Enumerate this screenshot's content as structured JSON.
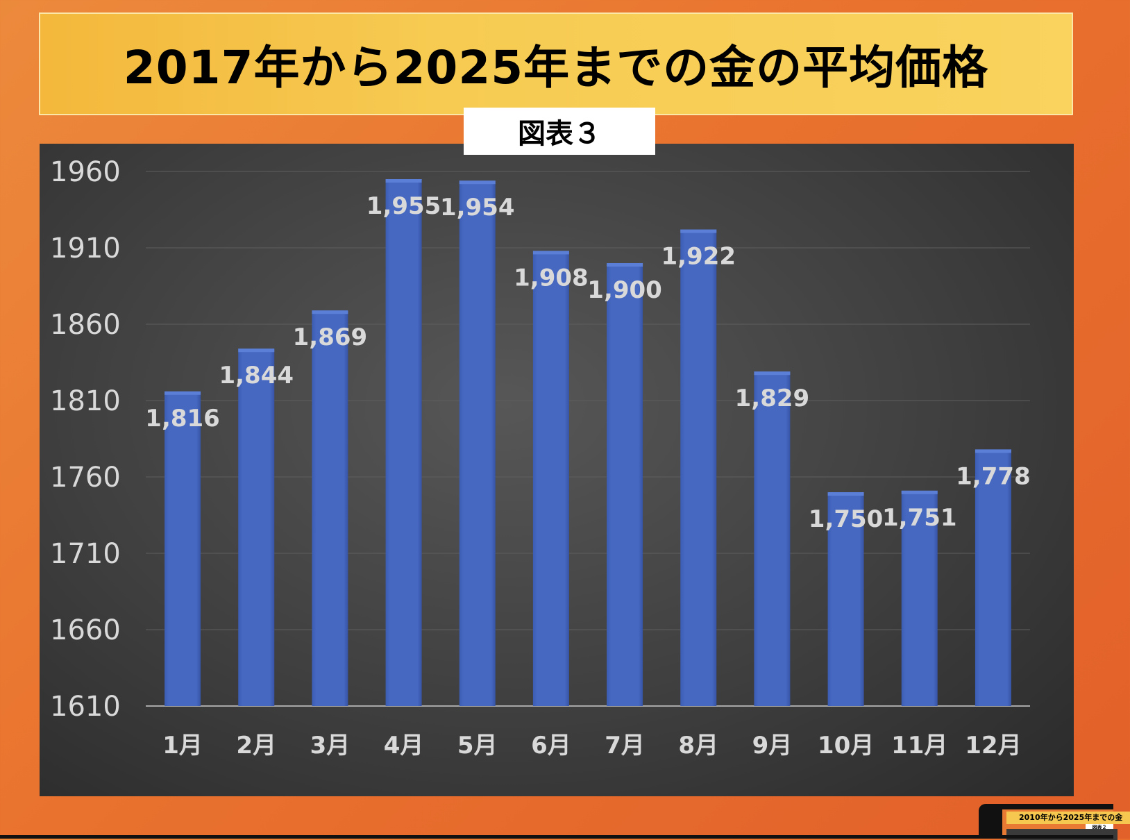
{
  "title": "2017年から2025年までの金の平均価格",
  "figure_label": "図表３",
  "thumbnail": {
    "title": "2010年から2025年までの金",
    "figure_label": "図表２"
  },
  "colors": {
    "bar": "#4668c1",
    "label": "#d9d9d9",
    "axis_text": "#d9d9d9"
  },
  "chart_data": {
    "type": "bar",
    "categories": [
      "1月",
      "2月",
      "3月",
      "4月",
      "5月",
      "6月",
      "7月",
      "8月",
      "9月",
      "10月",
      "11月",
      "12月"
    ],
    "values": [
      1816,
      1844,
      1869,
      1955,
      1954,
      1908,
      1900,
      1922,
      1829,
      1750,
      1751,
      1778
    ],
    "value_labels": [
      "1,816",
      "1,844",
      "1,869",
      "1,955",
      "1,954",
      "1,908",
      "1,900",
      "1,922",
      "1,829",
      "1,750",
      "1,751",
      "1,778"
    ],
    "yticks": [
      1610,
      1660,
      1710,
      1760,
      1810,
      1860,
      1910,
      1960
    ],
    "ylim": [
      1610,
      1960
    ],
    "title": "",
    "xlabel": "",
    "ylabel": "",
    "grid": true,
    "legend": "none"
  }
}
